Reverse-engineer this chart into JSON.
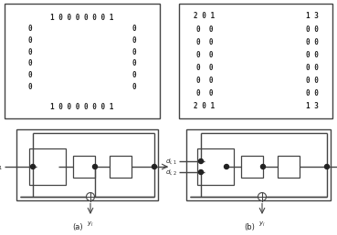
{
  "fig_width": 3.69,
  "fig_height": 2.58,
  "dpi": 100,
  "bg_color": "#ffffff",
  "matrix_a": {
    "top_row": "1 0 0 0 0 0 0 1",
    "middle_left": [
      "0",
      "0",
      "0",
      "0",
      "0",
      "0"
    ],
    "middle_right": [
      "0",
      "0",
      "0",
      "0",
      "0",
      "0"
    ],
    "bottom_row": "1 0 0 0 0 0 0 1",
    "fontsize": 5.5,
    "fontweight": "bold"
  },
  "matrix_b": {
    "col1_rows": [
      "2 0 1",
      "0  0",
      "0  0",
      "0  0",
      "0  0",
      "0  0",
      "0  0",
      "2 0 1"
    ],
    "col2_rows": [
      "1 3",
      "0 0",
      "0 0",
      "0 0",
      "0 0",
      "0 0",
      "0 0",
      "1 3"
    ],
    "fontsize": 5.5,
    "fontweight": "bold"
  },
  "line_color": "#444444",
  "text_color": "#222222",
  "fontsize_label": 5.0,
  "fontsize_caption": 6.0
}
